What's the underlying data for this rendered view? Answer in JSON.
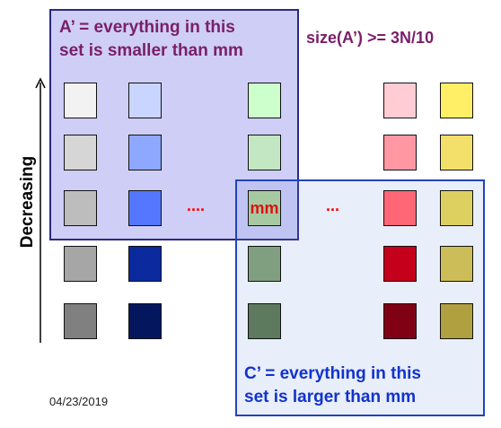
{
  "set_a": {
    "caption_line1": "A’ = everything in this",
    "caption_line2": "set is smaller than mm"
  },
  "size_label": "size(A’) >= 3N/10",
  "set_c": {
    "caption_line1": "C’ = everything in this",
    "caption_line2": "set is larger than mm"
  },
  "axis": {
    "label": "Decreasing"
  },
  "median": {
    "label": "mm"
  },
  "ellipsis": {
    "left": "....",
    "right": "..."
  },
  "footer": {
    "date": "04/23/2019"
  },
  "columns": [
    {
      "name": "gray",
      "colors": [
        "#f2f2f2",
        "#d6d6d6",
        "#bdbdbd",
        "#a6a6a6",
        "#808080"
      ]
    },
    {
      "name": "blue",
      "colors": [
        "#c9d4ff",
        "#8ea8ff",
        "#5577ff",
        "#0a2a9e",
        "#04175e"
      ]
    },
    {
      "name": "green",
      "colors": [
        "#ccffcc",
        "#c2e7c2",
        "#a7c9a2",
        "#7f9f80",
        "#5d7a5e"
      ]
    },
    {
      "name": "red",
      "colors": [
        "#ffccd4",
        "#ff98a3",
        "#ff6676",
        "#c4001a",
        "#800014"
      ]
    },
    {
      "name": "yellow",
      "colors": [
        "#ffef66",
        "#f2e06a",
        "#ddd060",
        "#cdbd58",
        "#b0a040"
      ]
    }
  ]
}
